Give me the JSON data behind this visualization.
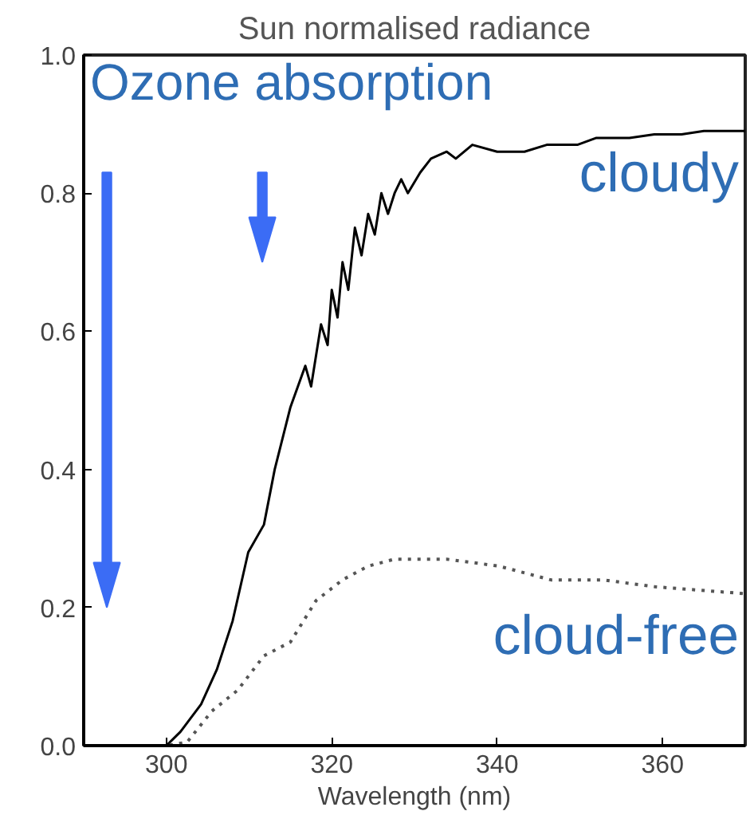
{
  "chart_data": {
    "type": "line",
    "title": "Sun normalised radiance",
    "xlabel": "Wavelength (nm)",
    "annotations": [
      "Ozone absorption"
    ],
    "xlim": [
      290,
      370
    ],
    "xticks": [
      300,
      320,
      340,
      360
    ],
    "ylim": [
      0,
      1
    ],
    "yticks": [
      {
        "value": 0,
        "label": "0.0"
      },
      0.2,
      0.4,
      0.6,
      0.8,
      {
        "value": 1,
        "label": "1.0"
      }
    ],
    "grid": false,
    "marker": "none",
    "series": [
      {
        "name": "cloudy",
        "color": "#000000",
        "line_style": "solid",
        "x": [
          290,
          295,
          300,
          301.7,
          304.2,
          306.1,
          308,
          309.9,
          311.8,
          313.1,
          315,
          316.8,
          317.5,
          318.7,
          319.5,
          320,
          320.7,
          321.3,
          322,
          322.8,
          323.6,
          324.4,
          325.2,
          326,
          326.8,
          327.6,
          328.4,
          329.2,
          330.7,
          332,
          333.9,
          335,
          337,
          340,
          343.3,
          346,
          349.7,
          352,
          356,
          359,
          362.3,
          365,
          368.6,
          370
        ],
        "values": [
          0,
          0,
          0,
          0.02,
          0.06,
          0.11,
          0.18,
          0.28,
          0.32,
          0.4,
          0.49,
          0.55,
          0.52,
          0.61,
          0.58,
          0.66,
          0.62,
          0.7,
          0.66,
          0.75,
          0.71,
          0.77,
          0.74,
          0.8,
          0.77,
          0.8,
          0.82,
          0.8,
          0.83,
          0.85,
          0.86,
          0.85,
          0.87,
          0.86,
          0.86,
          0.87,
          0.87,
          0.88,
          0.88,
          0.885,
          0.885,
          0.89,
          0.89,
          0.89
        ]
      },
      {
        "name": "cloud-free",
        "color": "#555555",
        "line_style": "dotted",
        "x": [
          290,
          300,
          302.5,
          305.5,
          308.6,
          311.8,
          315,
          318.1,
          321.3,
          324.4,
          327.6,
          333.9,
          340.2,
          346.5,
          352.8,
          359.1,
          370
        ],
        "values": [
          0,
          0,
          0.005,
          0.05,
          0.08,
          0.13,
          0.15,
          0.21,
          0.24,
          0.26,
          0.27,
          0.27,
          0.26,
          0.24,
          0.24,
          0.23,
          0.22
        ]
      }
    ]
  }
}
